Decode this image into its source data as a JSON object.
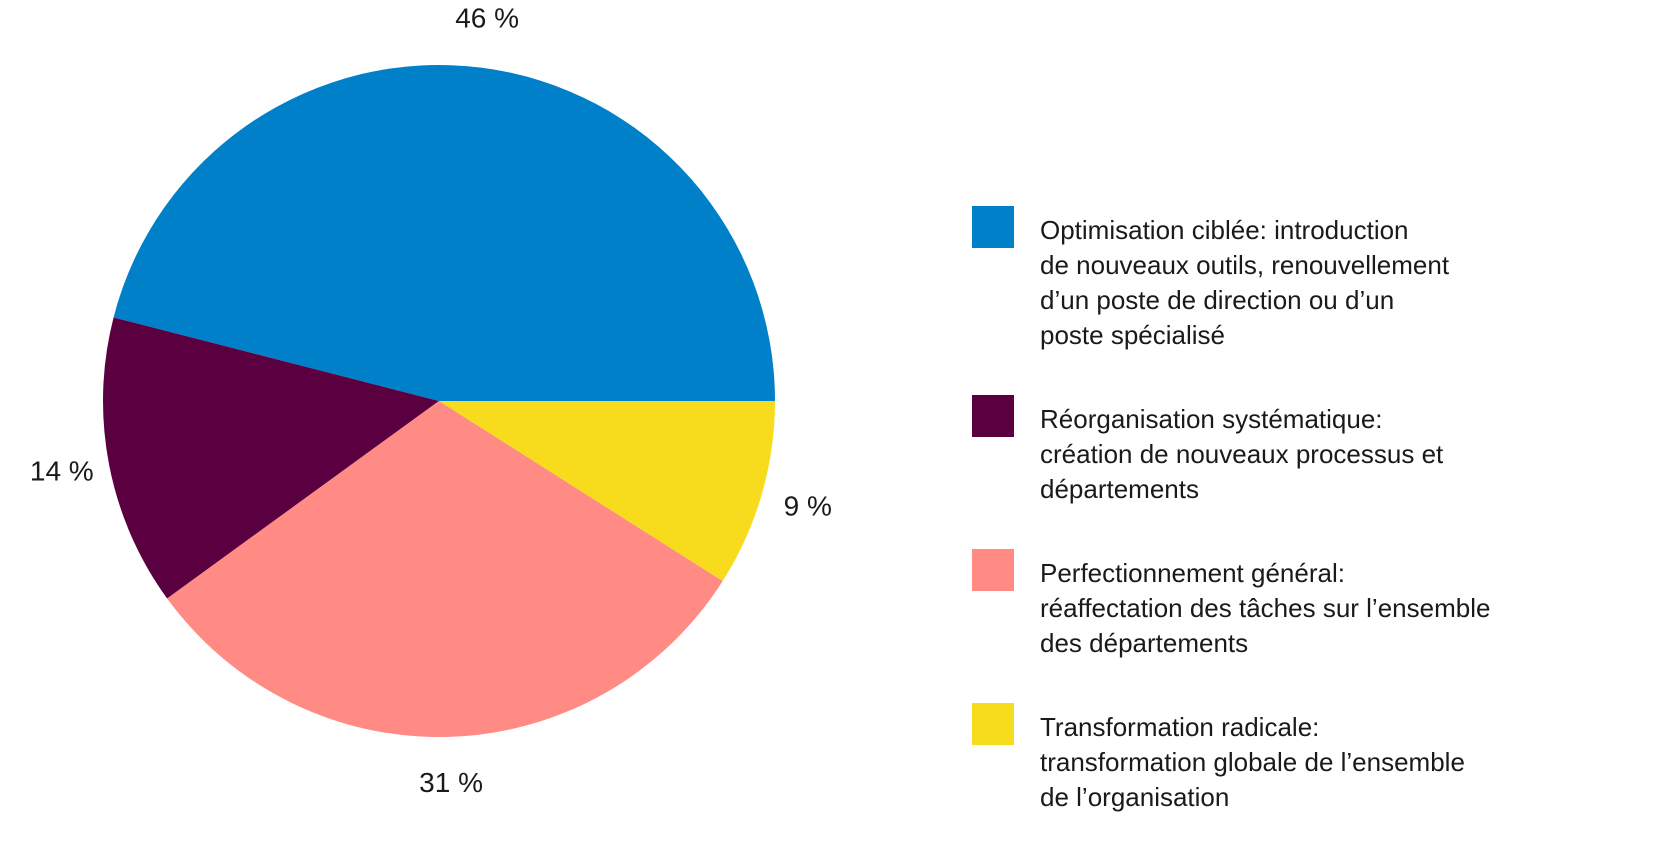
{
  "chart_data": {
    "type": "pie",
    "categories": [
      "Optimisation ciblée: introduction\nde nouveaux outils, renouvellement\nd’un poste de direction ou d’un\nposte spécialisé",
      "Réorganisation systématique:\ncréation de nouveaux processus et\ndépartements",
      "Perfectionnement général:\nréaffectation des tâches sur l’ensemble\ndes départements",
      "Transformation radicale:\ntransformation globale de l’ensemble\nde l’organisation"
    ],
    "values": [
      46,
      14,
      31,
      9
    ],
    "value_labels": [
      "46 %",
      "14 %",
      "31 %",
      "9 %"
    ],
    "colors": [
      "#0080c9",
      "#5a0040",
      "#ff8b84",
      "#f7dc1e"
    ]
  }
}
